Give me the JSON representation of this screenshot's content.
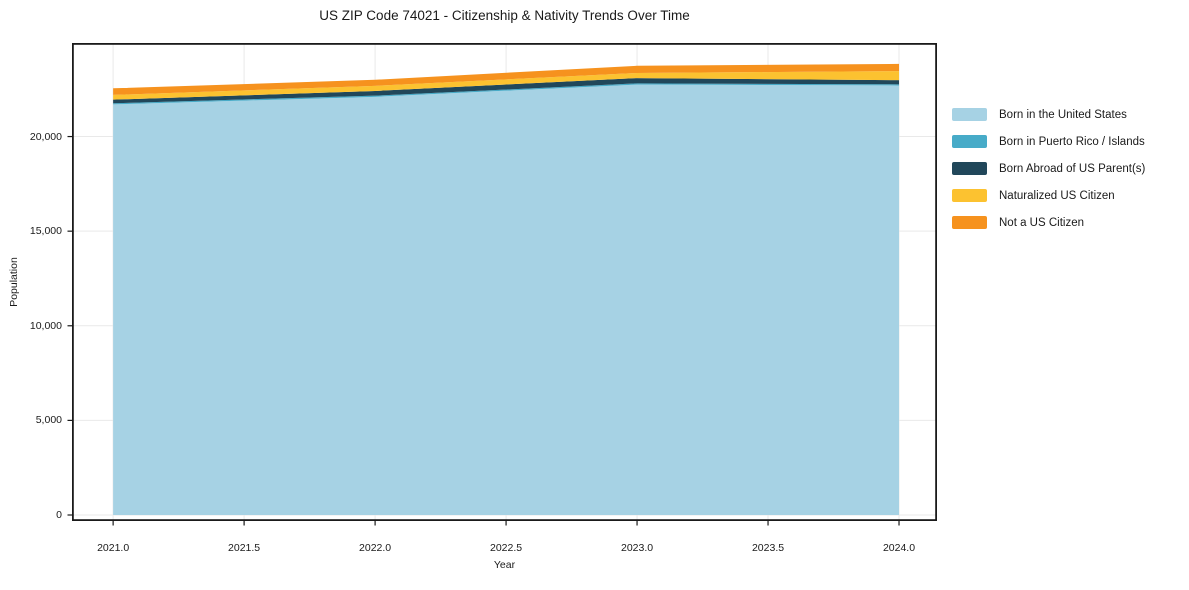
{
  "figure": {
    "title": "US ZIP Code 74021 - Citizenship & Nativity Trends Over Time"
  },
  "chart_data": {
    "type": "area",
    "stacked": true,
    "title": "US ZIP Code 74021 - Citizenship & Nativity Trends Over Time",
    "xlabel": "Year",
    "ylabel": "Population",
    "x": [
      2021,
      2022,
      2023,
      2024
    ],
    "series": [
      {
        "name": "Born in the United States",
        "color": "#a6d2e4",
        "values": [
          21700,
          22100,
          22750,
          22700
        ]
      },
      {
        "name": "Born in Puerto Rico / Islands",
        "color": "#47abc8",
        "values": [
          60,
          60,
          60,
          60
        ]
      },
      {
        "name": "Born Abroad of US Parent(s)",
        "color": "#21475a",
        "values": [
          190,
          250,
          280,
          220
        ]
      },
      {
        "name": "Naturalized US Citizen",
        "color": "#fcc230",
        "values": [
          250,
          270,
          270,
          480
        ]
      },
      {
        "name": "Not a US Citizen",
        "color": "#f6921e",
        "values": [
          350,
          320,
          380,
          380
        ]
      }
    ],
    "xlim": [
      2020.843,
      2024.145
    ],
    "ylim": [
      -317,
      24944
    ],
    "xticks": [
      2021.0,
      2021.5,
      2022.0,
      2022.5,
      2023.0,
      2023.5,
      2024.0
    ],
    "xtick_labels": [
      "2021.0",
      "2021.5",
      "2022.0",
      "2022.5",
      "2023.0",
      "2023.5",
      "2024.0"
    ],
    "yticks": [
      0,
      5000,
      10000,
      15000,
      20000
    ],
    "ytick_labels": [
      "0",
      "5,000",
      "10,000",
      "15,000",
      "20,000"
    ],
    "grid": true,
    "grid_color": "#e9e9e9",
    "axis_color": "#1a1a1a",
    "legend_position": "right"
  }
}
